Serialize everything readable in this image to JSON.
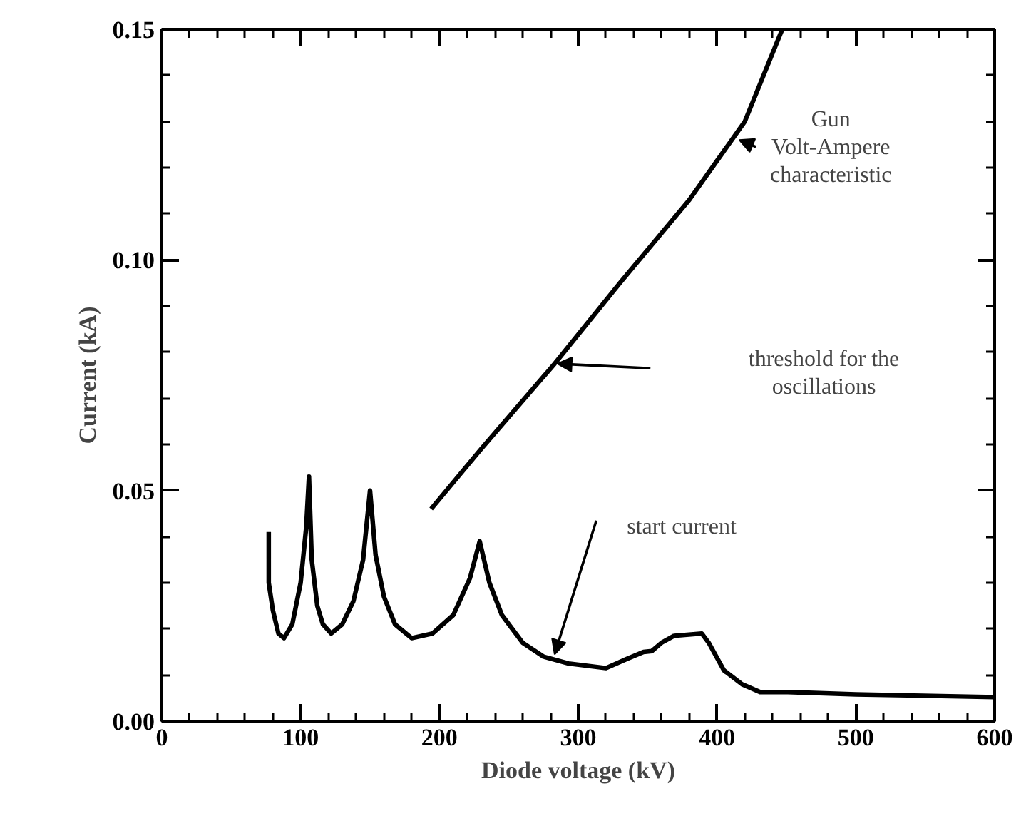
{
  "chart_data": {
    "type": "line",
    "xlabel": "Diode voltage (kV)",
    "ylabel": "Current (kA)",
    "xlim": [
      0,
      600
    ],
    "ylim": [
      0,
      0.15
    ],
    "xticks": [
      0,
      100,
      200,
      300,
      400,
      500,
      600
    ],
    "yticks": [
      {
        "value": 0,
        "label": "0.00"
      },
      {
        "value": 0.05,
        "label": "0.05"
      },
      {
        "value": 0.1,
        "label": "0.10"
      },
      {
        "value": 0.15,
        "label": "0.15"
      }
    ],
    "grid": false,
    "marker": "none",
    "line_style": "solid",
    "series": [
      {
        "color": "#000000",
        "x": [
          194,
          230,
          283,
          330,
          380,
          420,
          447
        ],
        "values": [
          0.046,
          0.059,
          0.0775,
          0.095,
          0.113,
          0.13,
          0.15
        ]
      },
      {
        "color": "#000000",
        "x": [
          77,
          77,
          80,
          84,
          88,
          94,
          100,
          104,
          106,
          108,
          112,
          116,
          122,
          130,
          138,
          145,
          150,
          154,
          160,
          168,
          180,
          195,
          210,
          222,
          229,
          236,
          245,
          260,
          275,
          293,
          320,
          335,
          347,
          353,
          360,
          369,
          389,
          394,
          405,
          418,
          431,
          451,
          500,
          600
        ],
        "values": [
          0.041,
          0.03,
          0.024,
          0.019,
          0.018,
          0.021,
          0.03,
          0.042,
          0.053,
          0.035,
          0.025,
          0.021,
          0.019,
          0.021,
          0.026,
          0.035,
          0.05,
          0.036,
          0.027,
          0.021,
          0.018,
          0.019,
          0.023,
          0.031,
          0.039,
          0.03,
          0.023,
          0.017,
          0.014,
          0.0125,
          0.0115,
          0.0135,
          0.015,
          0.0152,
          0.017,
          0.0185,
          0.019,
          0.017,
          0.011,
          0.008,
          0.0063,
          0.0063,
          0.0058,
          0.0052
        ]
      }
    ],
    "annotations": [
      "Gun\nVolt-Ampere\ncharacteristic",
      "threshold for the\noscillations",
      "start current"
    ]
  }
}
